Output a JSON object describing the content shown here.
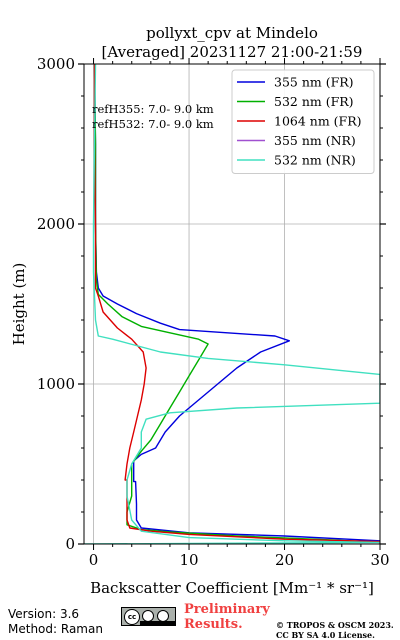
{
  "footer": {
    "version": "Version: 3.6",
    "method": "Method: Raman",
    "preliminary": "Preliminary Results.",
    "copyright_line1": "© TROPOS & OSCM 2023.",
    "copyright_line2": "CC BY SA 4.0 License.",
    "license_badge": "cc-by-sa-badge"
  },
  "chart_data": {
    "type": "line",
    "title": "pollyxt_cpv at Mindelo",
    "subtitle": "[Averaged] 20231127 21:00-21:59",
    "xlabel": "Backscatter Coefficient [Mm⁻¹ * sr⁻¹]",
    "ylabel": "Height (m)",
    "xlim": [
      -1,
      30
    ],
    "ylim": [
      0,
      3000
    ],
    "xticks": [
      0,
      10,
      20,
      30
    ],
    "yticks": [
      0,
      1000,
      2000,
      3000
    ],
    "grid": true,
    "legend_position": "top-right",
    "annotations": [
      "refH355:  7.0- 9.0 km",
      "refH532:  7.0- 9.0 km"
    ],
    "series": [
      {
        "name": "355 nm (FR)",
        "color": "#0000dd",
        "points": [
          [
            30,
            5
          ],
          [
            30,
            20
          ],
          [
            20,
            50
          ],
          [
            10,
            70
          ],
          [
            5,
            100
          ],
          [
            4.5,
            150
          ],
          [
            4.5,
            250
          ],
          [
            4.4,
            390
          ],
          [
            4.2,
            390
          ],
          [
            4.2,
            520
          ],
          [
            5,
            560
          ],
          [
            6.5,
            600
          ],
          [
            7.5,
            700
          ],
          [
            9,
            800
          ],
          [
            11,
            900
          ],
          [
            13,
            1000
          ],
          [
            15,
            1100
          ],
          [
            17.5,
            1200
          ],
          [
            20.5,
            1270
          ],
          [
            19,
            1300
          ],
          [
            14,
            1320
          ],
          [
            9,
            1340
          ],
          [
            7,
            1380
          ],
          [
            4.5,
            1440
          ],
          [
            2.5,
            1500
          ],
          [
            1,
            1550
          ],
          [
            0.5,
            1600
          ],
          [
            0.3,
            1700
          ],
          [
            0.2,
            2000
          ],
          [
            0.2,
            2500
          ],
          [
            0.1,
            3000
          ]
        ]
      },
      {
        "name": "532 nm (FR)",
        "color": "#00b000",
        "points": [
          [
            30,
            10
          ],
          [
            25,
            25
          ],
          [
            15,
            50
          ],
          [
            8,
            75
          ],
          [
            5,
            90
          ],
          [
            3.5,
            120
          ],
          [
            3.5,
            200
          ],
          [
            4,
            300
          ],
          [
            4,
            400
          ],
          [
            4,
            500
          ],
          [
            5,
            580
          ],
          [
            6,
            650
          ],
          [
            7,
            750
          ],
          [
            8,
            850
          ],
          [
            9,
            950
          ],
          [
            10,
            1050
          ],
          [
            11,
            1150
          ],
          [
            12,
            1250
          ],
          [
            11,
            1280
          ],
          [
            8,
            1320
          ],
          [
            5,
            1360
          ],
          [
            3,
            1420
          ],
          [
            1.5,
            1500
          ],
          [
            0.5,
            1560
          ],
          [
            0.3,
            1650
          ],
          [
            0.2,
            2000
          ],
          [
            0.2,
            2500
          ],
          [
            0.1,
            3000
          ]
        ]
      },
      {
        "name": "1064 nm (FR)",
        "color": "#dd0000",
        "points": [
          [
            30,
            15
          ],
          [
            20,
            30
          ],
          [
            10,
            60
          ],
          [
            6,
            80
          ],
          [
            3.8,
            100
          ],
          [
            3.5,
            150
          ],
          [
            3.5,
            250
          ],
          [
            3.5,
            400
          ],
          [
            3.3,
            400
          ],
          [
            3.5,
            500
          ],
          [
            3.8,
            600
          ],
          [
            4.2,
            700
          ],
          [
            4.6,
            800
          ],
          [
            5,
            900
          ],
          [
            5.3,
            1000
          ],
          [
            5.5,
            1100
          ],
          [
            5.2,
            1200
          ],
          [
            4,
            1280
          ],
          [
            2.5,
            1350
          ],
          [
            1,
            1450
          ],
          [
            0.5,
            1550
          ],
          [
            0.2,
            1600
          ],
          [
            0.2,
            2000
          ],
          [
            0.1,
            2500
          ],
          [
            0.1,
            3000
          ]
        ]
      },
      {
        "name": "355 nm (NR)",
        "color": "#a050d0",
        "points": []
      },
      {
        "name": "532 nm (NR)",
        "color": "#40e0c0",
        "points": [
          [
            -1,
            0
          ],
          [
            30,
            10
          ],
          [
            20,
            20
          ],
          [
            10,
            40
          ],
          [
            5,
            80
          ],
          [
            4,
            150
          ],
          [
            3.5,
            300
          ],
          [
            3.5,
            400
          ],
          [
            4,
            500
          ],
          [
            5,
            600
          ],
          [
            5,
            700
          ],
          [
            5.5,
            780
          ],
          [
            8,
            820
          ],
          [
            15,
            850
          ],
          [
            30,
            880
          ],
          [
            30,
            1060
          ],
          [
            20,
            1120
          ],
          [
            12,
            1160
          ],
          [
            7,
            1200
          ],
          [
            2,
            1280
          ],
          [
            0.5,
            1300
          ],
          [
            0.2,
            1400
          ],
          [
            0.1,
            1550
          ],
          [
            0,
            1700
          ],
          [
            0,
            2000
          ],
          [
            0.1,
            2500
          ],
          [
            0.2,
            3000
          ]
        ]
      }
    ]
  }
}
